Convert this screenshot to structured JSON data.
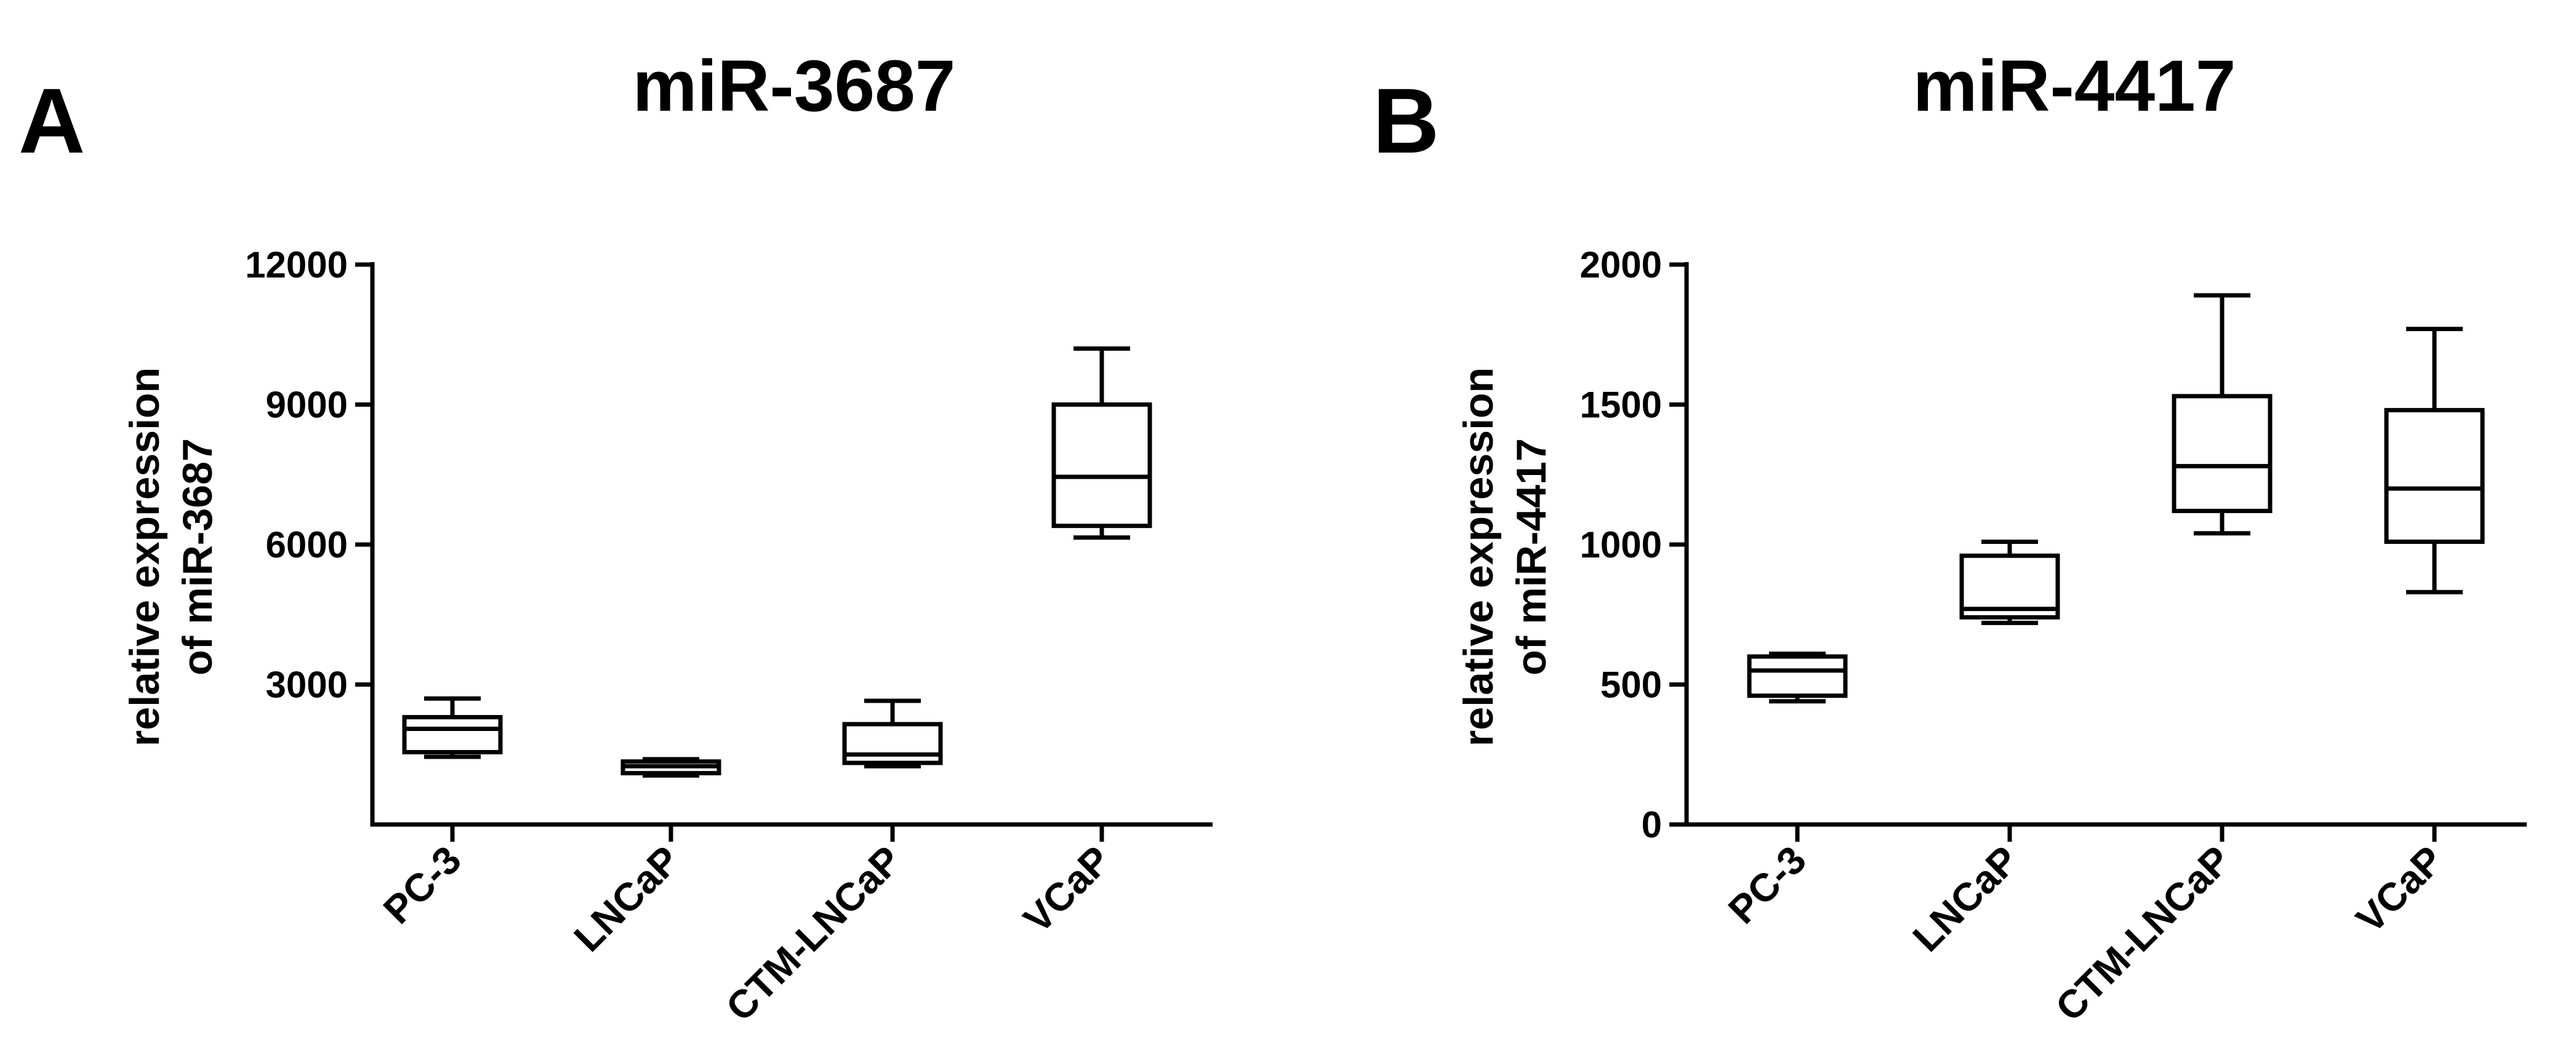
{
  "chart_data": [
    {
      "type": "box",
      "panel": "A",
      "title": "miR-3687",
      "ylabel": [
        "relative expression",
        "of miR-3687"
      ],
      "xlabel": "",
      "ylim": [
        0,
        12000
      ],
      "yticks": [
        3000,
        6000,
        9000,
        12000
      ],
      "ytick_labels": [
        "3000",
        "6000",
        "9000",
        "12000"
      ],
      "categories": [
        "PC-3",
        "LNCaP",
        "CTM-LNCaP",
        "VCaP"
      ],
      "boxes": [
        {
          "min": 1450,
          "q1": 1550,
          "median": 2050,
          "q3": 2300,
          "max": 2700
        },
        {
          "min": 1050,
          "q1": 1100,
          "median": 1250,
          "q3": 1350,
          "max": 1400
        },
        {
          "min": 1250,
          "q1": 1320,
          "median": 1500,
          "q3": 2150,
          "max": 2650
        },
        {
          "min": 6150,
          "q1": 6400,
          "median": 7450,
          "q3": 9000,
          "max": 10200
        }
      ],
      "grid": false,
      "color": "#000000"
    },
    {
      "type": "box",
      "panel": "B",
      "title": "miR-4417",
      "ylabel": [
        "relative expression",
        "of miR-4417"
      ],
      "xlabel": "",
      "ylim": [
        0,
        2000
      ],
      "yticks": [
        0,
        500,
        1000,
        1500,
        2000
      ],
      "ytick_labels": [
        "0",
        "500",
        "1000",
        "1500",
        "2000"
      ],
      "categories": [
        "PC-3",
        "LNCaP",
        "CTM-LNCaP",
        "VCaP"
      ],
      "boxes": [
        {
          "min": 440,
          "q1": 460,
          "median": 550,
          "q3": 600,
          "max": 610
        },
        {
          "min": 720,
          "q1": 740,
          "median": 770,
          "q3": 960,
          "max": 1010
        },
        {
          "min": 1040,
          "q1": 1120,
          "median": 1280,
          "q3": 1530,
          "max": 1890
        },
        {
          "min": 830,
          "q1": 1010,
          "median": 1200,
          "q3": 1480,
          "max": 1770
        }
      ],
      "grid": false,
      "color": "#000000"
    }
  ]
}
